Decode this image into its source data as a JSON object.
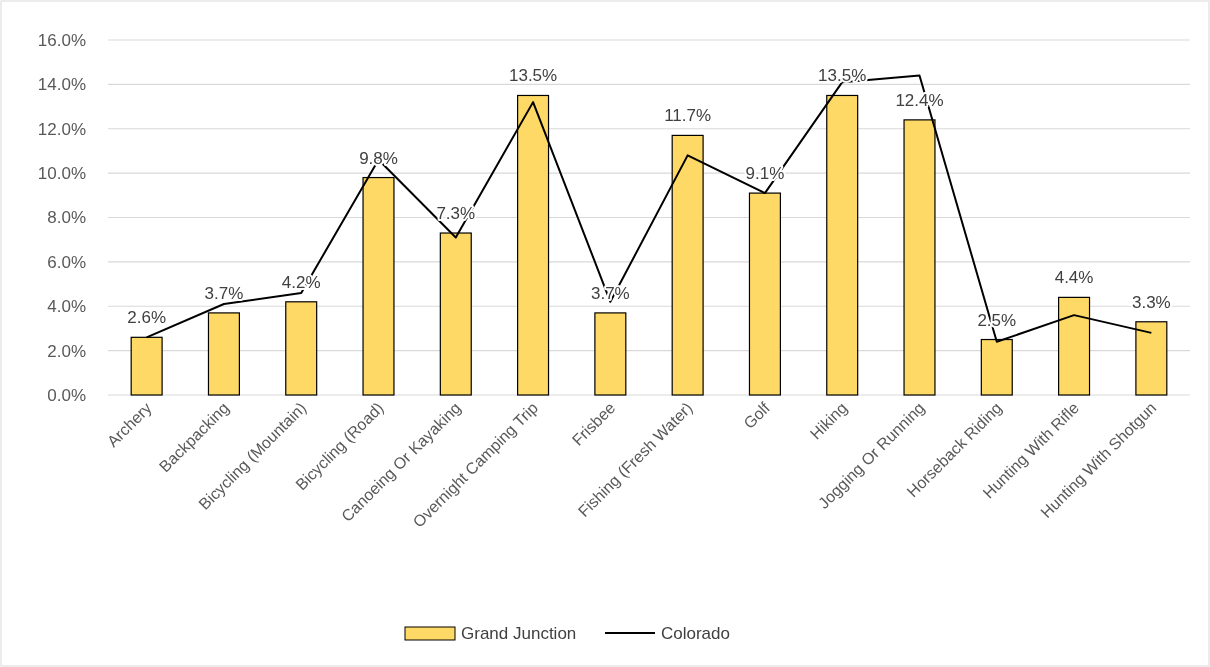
{
  "chart_data": {
    "type": "bar",
    "categories": [
      "Archery",
      "Backpacking",
      "Bicycling (Mountain)",
      "Bicycling (Road)",
      "Canoeing Or Kayaking",
      "Overnight Camping Trip",
      "Frisbee",
      "Fishing (Fresh Water)",
      "Golf",
      "Hiking",
      "Jogging Or Running",
      "Horseback Riding",
      "Hunting With Rifle",
      "Hunting With Shotgun"
    ],
    "series": [
      {
        "name": "Grand Junction",
        "color": "#ffd966",
        "values": [
          2.6,
          3.7,
          4.2,
          9.8,
          7.3,
          13.5,
          3.7,
          11.7,
          9.1,
          13.5,
          12.4,
          2.5,
          4.4,
          3.3
        ],
        "value_labels": [
          "2.6%",
          "3.7%",
          "4.2%",
          "9.8%",
          "7.3%",
          "13.5%",
          "3.7%",
          "11.7%",
          "9.1%",
          "13.5%",
          "12.4%",
          "2.5%",
          "4.4%",
          "3.3%"
        ]
      },
      {
        "name": "Colorado",
        "type": "line",
        "color": "#000000",
        "values": [
          2.6,
          4.1,
          4.6,
          10.6,
          7.1,
          13.2,
          4.2,
          10.8,
          9.1,
          14.1,
          14.4,
          2.4,
          3.6,
          2.8
        ]
      }
    ],
    "ylim": [
      0,
      16
    ],
    "yticks": [
      {
        "value": 0,
        "label": "0.0%"
      },
      {
        "value": 2,
        "label": "2.0%"
      },
      {
        "value": 4,
        "label": "4.0%"
      },
      {
        "value": 6,
        "label": "6.0%"
      },
      {
        "value": 8,
        "label": "8.0%"
      },
      {
        "value": 10,
        "label": "10.0%"
      },
      {
        "value": 12,
        "label": "12.0%"
      },
      {
        "value": 14,
        "label": "14.0%"
      },
      {
        "value": 16,
        "label": "16.0%"
      }
    ],
    "grid": "y",
    "legend": "bottom",
    "marker": "none",
    "line_style": "solid"
  }
}
